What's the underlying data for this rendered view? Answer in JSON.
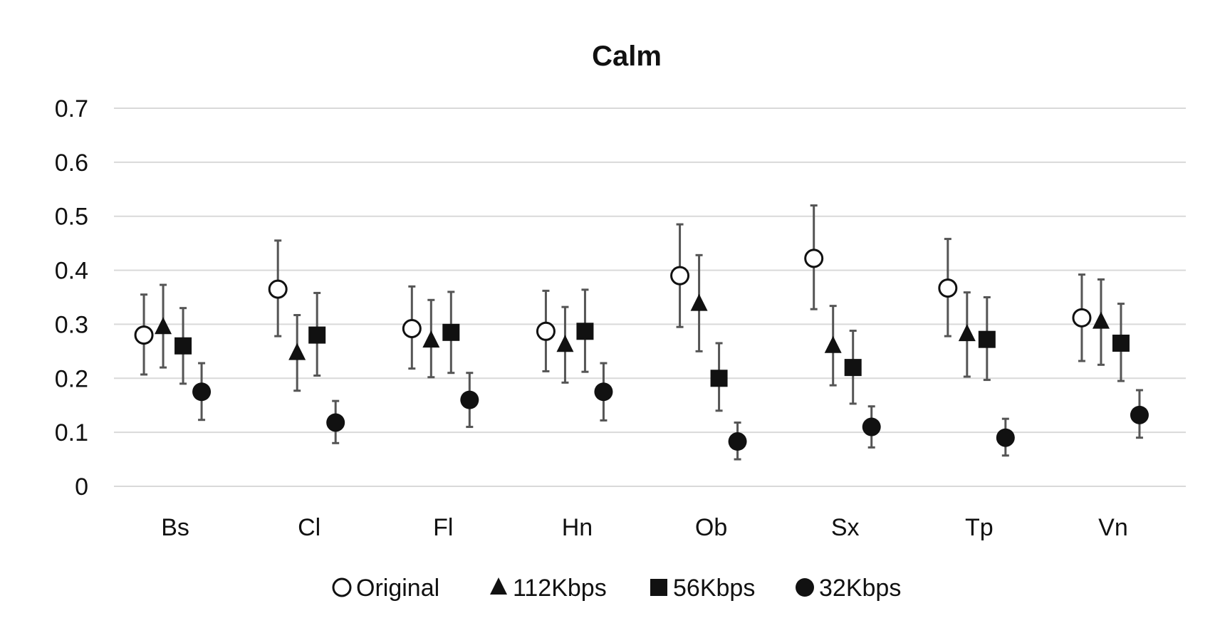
{
  "chart_data": {
    "type": "scatter",
    "title": "Calm",
    "categories": [
      "Bs",
      "Cl",
      "Fl",
      "Hn",
      "Ob",
      "Sx",
      "Tp",
      "Vn"
    ],
    "ylim": [
      0,
      0.7
    ],
    "yticks": [
      "0",
      "0.1",
      "0.2",
      "0.3",
      "0.4",
      "0.5",
      "0.6",
      "0.7"
    ],
    "grid": true,
    "legend_position": "bottom",
    "series": [
      {
        "name": "Original",
        "marker": "open-circle",
        "values": [
          0.28,
          0.365,
          0.292,
          0.287,
          0.39,
          0.422,
          0.367,
          0.312
        ],
        "err_low": [
          0.207,
          0.278,
          0.218,
          0.213,
          0.295,
          0.328,
          0.278,
          0.232
        ],
        "err_high": [
          0.355,
          0.455,
          0.37,
          0.362,
          0.485,
          0.52,
          0.458,
          0.392
        ]
      },
      {
        "name": "112Kbps",
        "marker": "triangle",
        "values": [
          0.295,
          0.247,
          0.27,
          0.262,
          0.338,
          0.26,
          0.282,
          0.305
        ],
        "err_low": [
          0.22,
          0.177,
          0.202,
          0.192,
          0.25,
          0.187,
          0.203,
          0.225
        ],
        "err_high": [
          0.373,
          0.317,
          0.345,
          0.332,
          0.428,
          0.334,
          0.359,
          0.383
        ]
      },
      {
        "name": "56Kbps",
        "marker": "square",
        "values": [
          0.26,
          0.28,
          0.285,
          0.287,
          0.2,
          0.22,
          0.272,
          0.265
        ],
        "err_low": [
          0.19,
          0.205,
          0.21,
          0.212,
          0.14,
          0.153,
          0.197,
          0.195
        ],
        "err_high": [
          0.33,
          0.358,
          0.36,
          0.364,
          0.265,
          0.288,
          0.35,
          0.338
        ]
      },
      {
        "name": "32Kbps",
        "marker": "filled-circle",
        "values": [
          0.175,
          0.118,
          0.16,
          0.175,
          0.083,
          0.11,
          0.09,
          0.132
        ],
        "err_low": [
          0.123,
          0.08,
          0.11,
          0.122,
          0.05,
          0.072,
          0.057,
          0.09
        ],
        "err_high": [
          0.228,
          0.158,
          0.21,
          0.228,
          0.118,
          0.148,
          0.125,
          0.178
        ]
      }
    ]
  },
  "colors": {
    "marker": "#111111",
    "error_bar": "#555555",
    "grid": "#d9d9d9"
  }
}
